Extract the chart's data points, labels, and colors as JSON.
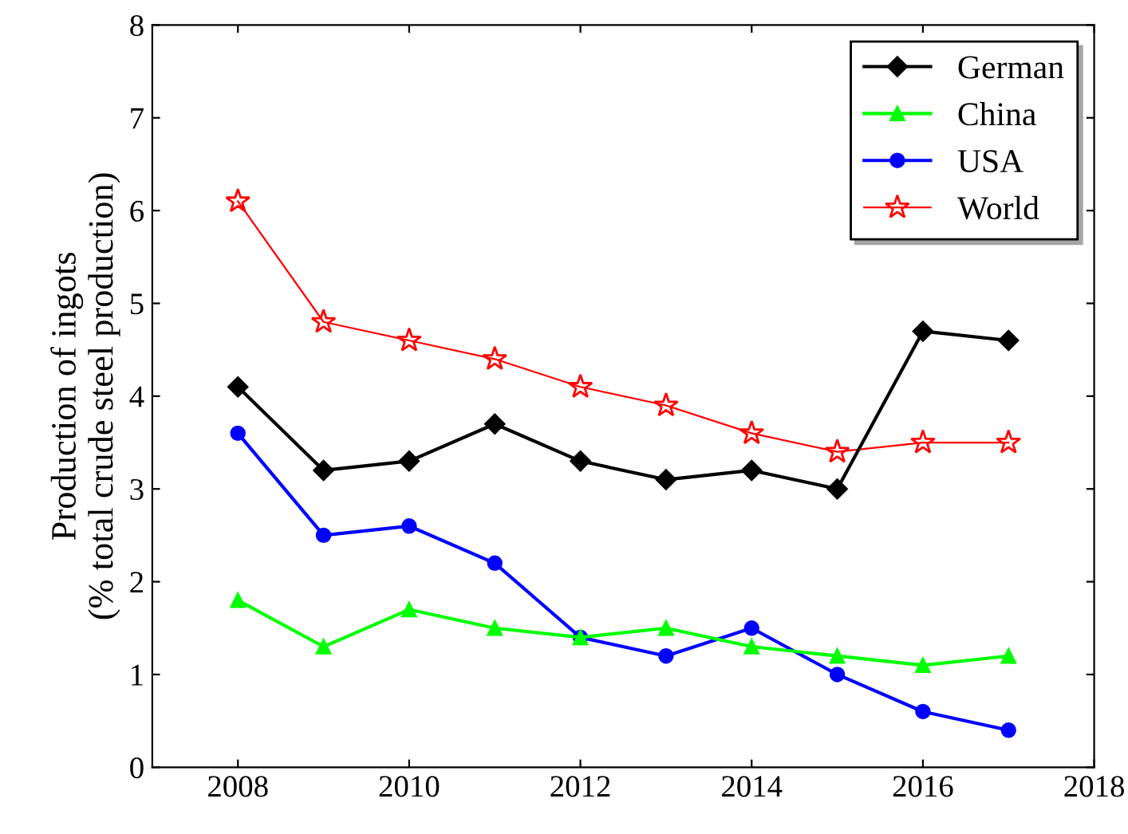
{
  "chart_data": {
    "type": "line",
    "ylabel": "Production of ingots\n(% total crude steel production)",
    "x": [
      2008,
      2009,
      2010,
      2011,
      2012,
      2013,
      2014,
      2015,
      2016,
      2017
    ],
    "series": [
      {
        "name": "German",
        "color": "#000000",
        "marker": "diamond",
        "values": [
          4.1,
          3.2,
          3.3,
          3.7,
          3.3,
          3.1,
          3.2,
          3.0,
          4.7,
          4.6
        ]
      },
      {
        "name": "China",
        "color": "#00ff00",
        "marker": "triangle",
        "values": [
          1.8,
          1.3,
          1.7,
          1.5,
          1.4,
          1.5,
          1.3,
          1.2,
          1.1,
          1.2
        ]
      },
      {
        "name": "USA",
        "color": "#0000ff",
        "marker": "circle",
        "values": [
          3.6,
          2.5,
          2.6,
          2.2,
          1.4,
          1.2,
          1.5,
          1.0,
          0.6,
          0.4
        ]
      },
      {
        "name": "World",
        "color": "#ff0000",
        "marker": "star",
        "values": [
          6.1,
          4.8,
          4.6,
          4.4,
          4.1,
          3.9,
          3.6,
          3.4,
          3.5,
          3.5
        ]
      }
    ],
    "xlim": [
      2007,
      2018
    ],
    "xticks": [
      2008,
      2010,
      2012,
      2014,
      2016,
      2018
    ],
    "ylim": [
      0,
      8
    ],
    "yticks": [
      0,
      1,
      2,
      3,
      4,
      5,
      6,
      7,
      8
    ],
    "grid": false,
    "legend": "top right",
    "line_style": "solid"
  }
}
